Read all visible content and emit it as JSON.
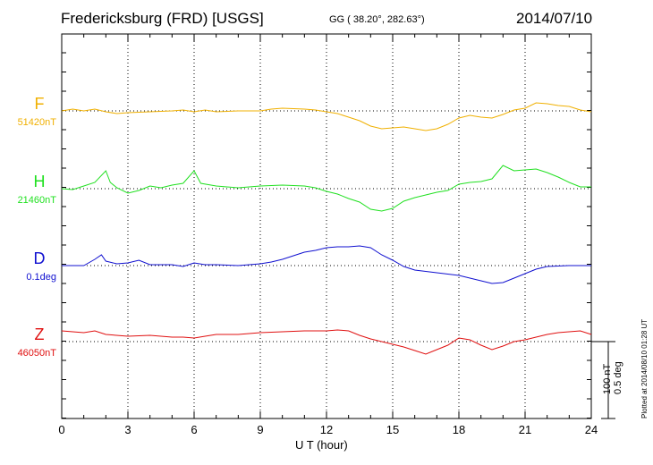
{
  "header": {
    "station": "Fredericksburg (FRD)  [USGS]",
    "coords": "GG ( 38.20°, 282.63°)",
    "date": "2014/07/10"
  },
  "scale": {
    "label1": "100 nT",
    "label2": "0.5 deg"
  },
  "plotted": "Plotted at 2014/08/10 01:28 UT",
  "chart_data": {
    "type": "line",
    "xlabel": "U T (hour)",
    "xlim": [
      0,
      24
    ],
    "xticks": [
      "0",
      "3",
      "6",
      "9",
      "12",
      "15",
      "18",
      "21",
      "24"
    ],
    "grid": true,
    "components": [
      {
        "name": "F",
        "base": "51420nT",
        "color": "#f0b000",
        "points": [
          [
            0,
            0
          ],
          [
            0.5,
            -2
          ],
          [
            1,
            0
          ],
          [
            1.5,
            -2
          ],
          [
            2,
            1
          ],
          [
            2.5,
            3
          ],
          [
            3,
            2
          ],
          [
            4,
            1
          ],
          [
            5,
            0
          ],
          [
            5.5,
            -1
          ],
          [
            6,
            1
          ],
          [
            6.5,
            -1
          ],
          [
            7,
            1
          ],
          [
            8,
            0
          ],
          [
            9,
            0
          ],
          [
            9.5,
            -2
          ],
          [
            10,
            -3
          ],
          [
            11,
            -2
          ],
          [
            11.5,
            -1
          ],
          [
            12,
            1
          ],
          [
            12.5,
            3
          ],
          [
            13,
            7
          ],
          [
            13.5,
            11
          ],
          [
            14,
            17
          ],
          [
            14.5,
            20
          ],
          [
            15,
            19
          ],
          [
            15.5,
            18
          ],
          [
            16,
            20
          ],
          [
            16.5,
            22
          ],
          [
            17,
            20
          ],
          [
            17.5,
            15
          ],
          [
            18,
            8
          ],
          [
            18.5,
            5
          ],
          [
            19,
            7
          ],
          [
            19.5,
            8
          ],
          [
            20,
            4
          ],
          [
            20.5,
            -1
          ],
          [
            21,
            -3
          ],
          [
            21.5,
            -9
          ],
          [
            22,
            -8
          ],
          [
            22.5,
            -6
          ],
          [
            23,
            -5
          ],
          [
            23.5,
            -1
          ],
          [
            24,
            1
          ]
        ]
      },
      {
        "name": "H",
        "base": "21460nT",
        "color": "#20e020",
        "points": [
          [
            0,
            0
          ],
          [
            0.5,
            1
          ],
          [
            1,
            -3
          ],
          [
            1.5,
            -7
          ],
          [
            2,
            -20
          ],
          [
            2.2,
            -7
          ],
          [
            2.5,
            -1
          ],
          [
            3,
            5
          ],
          [
            3.5,
            2
          ],
          [
            4,
            -3
          ],
          [
            4.5,
            -1
          ],
          [
            5,
            -4
          ],
          [
            5.5,
            -6
          ],
          [
            6,
            -20
          ],
          [
            6.3,
            -6
          ],
          [
            7,
            -3
          ],
          [
            8,
            -1
          ],
          [
            9,
            -3
          ],
          [
            10,
            -4
          ],
          [
            11,
            -3
          ],
          [
            11.5,
            -1
          ],
          [
            12,
            3
          ],
          [
            12.5,
            6
          ],
          [
            13,
            11
          ],
          [
            13.5,
            15
          ],
          [
            14,
            23
          ],
          [
            14.5,
            25
          ],
          [
            15,
            22
          ],
          [
            15.5,
            14
          ],
          [
            16,
            10
          ],
          [
            16.5,
            7
          ],
          [
            17,
            4
          ],
          [
            17.5,
            2
          ],
          [
            18,
            -5
          ],
          [
            18.5,
            -7
          ],
          [
            19,
            -8
          ],
          [
            19.5,
            -11
          ],
          [
            20,
            -26
          ],
          [
            20.5,
            -20
          ],
          [
            21,
            -21
          ],
          [
            21.5,
            -22
          ],
          [
            22,
            -18
          ],
          [
            22.5,
            -13
          ],
          [
            23,
            -7
          ],
          [
            23.5,
            -2
          ],
          [
            24,
            -2
          ]
        ]
      },
      {
        "name": "D",
        "base": "0.1deg",
        "color": "#1010d0",
        "points": [
          [
            0,
            0
          ],
          [
            0.5,
            0
          ],
          [
            1,
            0
          ],
          [
            1.5,
            -7
          ],
          [
            1.8,
            -12
          ],
          [
            2,
            -5
          ],
          [
            2.5,
            -2
          ],
          [
            3,
            -3
          ],
          [
            3.5,
            -6
          ],
          [
            4,
            -1
          ],
          [
            5,
            -1
          ],
          [
            5.5,
            1
          ],
          [
            6,
            -3
          ],
          [
            6.5,
            -1
          ],
          [
            7,
            -1
          ],
          [
            8,
            0
          ],
          [
            9,
            -2
          ],
          [
            9.5,
            -4
          ],
          [
            10,
            -7
          ],
          [
            10.5,
            -11
          ],
          [
            11,
            -15
          ],
          [
            11.5,
            -17
          ],
          [
            12,
            -20
          ],
          [
            12.5,
            -21
          ],
          [
            13,
            -21
          ],
          [
            13.5,
            -22
          ],
          [
            14,
            -20
          ],
          [
            14.5,
            -12
          ],
          [
            15,
            -6
          ],
          [
            15.5,
            1
          ],
          [
            16,
            5
          ],
          [
            17,
            8
          ],
          [
            18,
            11
          ],
          [
            19,
            17
          ],
          [
            19.5,
            20
          ],
          [
            20,
            19
          ],
          [
            20.5,
            14
          ],
          [
            21,
            9
          ],
          [
            21.5,
            4
          ],
          [
            22,
            1
          ],
          [
            23,
            0
          ],
          [
            24,
            0
          ]
        ]
      },
      {
        "name": "Z",
        "base": "46050nT",
        "color": "#e01010",
        "points": [
          [
            0,
            -12
          ],
          [
            0.5,
            -11
          ],
          [
            1,
            -10
          ],
          [
            1.5,
            -12
          ],
          [
            2,
            -8
          ],
          [
            3,
            -6
          ],
          [
            4,
            -7
          ],
          [
            5,
            -5
          ],
          [
            5.5,
            -5
          ],
          [
            6,
            -4
          ],
          [
            6.5,
            -6
          ],
          [
            7,
            -8
          ],
          [
            8,
            -8
          ],
          [
            9,
            -10
          ],
          [
            10,
            -11
          ],
          [
            11,
            -12
          ],
          [
            12,
            -12
          ],
          [
            12.5,
            -13
          ],
          [
            13,
            -12
          ],
          [
            13.5,
            -7
          ],
          [
            14,
            -3
          ],
          [
            14.5,
            0
          ],
          [
            15,
            3
          ],
          [
            15.5,
            6
          ],
          [
            16,
            10
          ],
          [
            16.5,
            14
          ],
          [
            17,
            9
          ],
          [
            17.5,
            4
          ],
          [
            18,
            -4
          ],
          [
            18.5,
            -2
          ],
          [
            19,
            4
          ],
          [
            19.5,
            9
          ],
          [
            20,
            5
          ],
          [
            20.5,
            0
          ],
          [
            21,
            -2
          ],
          [
            21.5,
            -5
          ],
          [
            22,
            -8
          ],
          [
            22.5,
            -10
          ],
          [
            23,
            -11
          ],
          [
            23.5,
            -12
          ],
          [
            24,
            -8
          ]
        ]
      }
    ]
  }
}
